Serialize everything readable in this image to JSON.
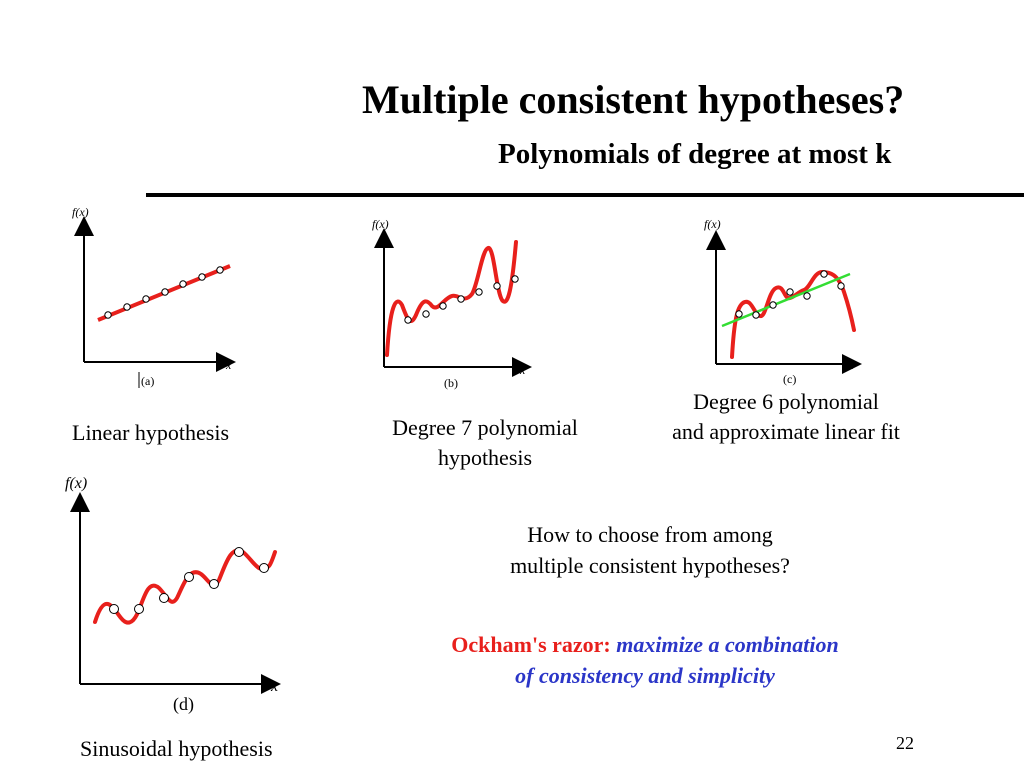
{
  "slide": {
    "title": "Multiple consistent hypotheses?",
    "subtitle": "Polynomials of degree at most k",
    "page_number": "22"
  },
  "colors": {
    "curve": "#e8201c",
    "fit_line": "#33dd33",
    "razor_label": "#e8201c",
    "razor_text": "#2b36c8"
  },
  "plots": {
    "a": {
      "ylabel": "f(x)",
      "xlabel": "x",
      "panel": "(a)",
      "caption": "Linear hypothesis"
    },
    "b": {
      "ylabel": "f(x)",
      "xlabel": "x",
      "panel": "(b)",
      "caption_line1": "Degree 7 polynomial",
      "caption_line2": "hypothesis"
    },
    "c": {
      "ylabel": "f(x)",
      "xlabel": "x",
      "panel": "(c)",
      "caption_line1": "Degree 6 polynomial",
      "caption_line2": "and approximate linear fit"
    },
    "d": {
      "ylabel": "f(x)",
      "xlabel": "x",
      "panel": "(d)",
      "caption": "Sinusoidal hypothesis"
    }
  },
  "question": {
    "line1": "How to choose from among",
    "line2": "multiple consistent hypotheses?"
  },
  "razor": {
    "label": "Ockham's razor:",
    "text_line1": "maximize a combination",
    "text_line2": "of consistency and simplicity"
  }
}
